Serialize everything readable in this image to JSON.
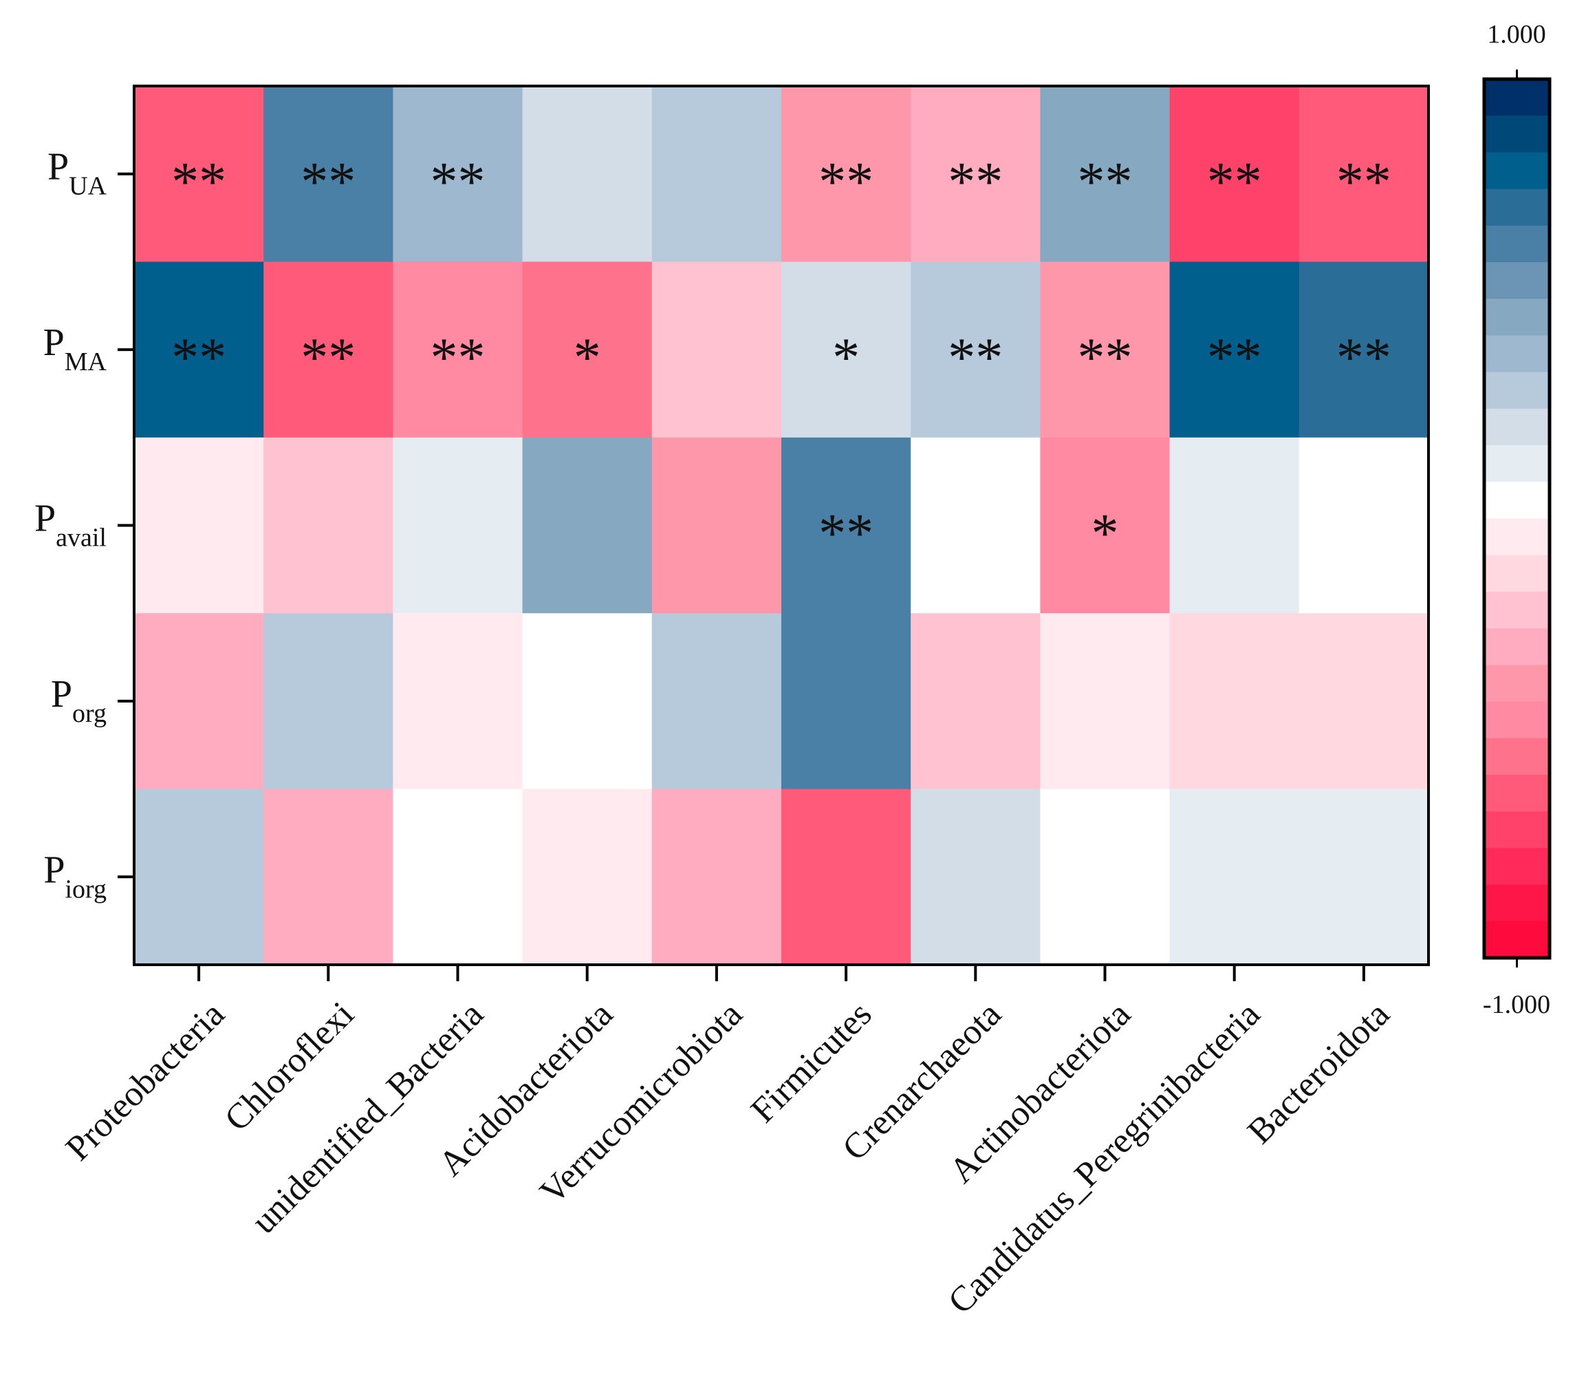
{
  "chart_data": {
    "type": "heatmap",
    "rows": [
      {
        "base": "P",
        "sub": "UA"
      },
      {
        "base": "P",
        "sub": "MA"
      },
      {
        "base": "P",
        "sub": "avail"
      },
      {
        "base": "P",
        "sub": "org"
      },
      {
        "base": "P",
        "sub": "iorg"
      }
    ],
    "columns": [
      "Proteobacteria",
      "Chloroflexi",
      "unidentified_Bacteria",
      "Acidobacteriota",
      "Verrucomicrobiota",
      "Firmicutes",
      "Crenarchaeota",
      "Actinobacteriota",
      "Candidatus_Peregrinibacteria",
      "Bacteroidota"
    ],
    "values": [
      [
        -0.63,
        0.63,
        0.38,
        0.21,
        0.29,
        -0.38,
        -0.29,
        0.46,
        -0.71,
        -0.63
      ],
      [
        0.79,
        -0.63,
        -0.46,
        -0.54,
        -0.21,
        0.21,
        0.29,
        -0.38,
        0.79,
        0.71
      ],
      [
        -0.04,
        -0.21,
        0.13,
        0.46,
        -0.38,
        0.63,
        0.04,
        -0.46,
        0.13,
        0.04
      ],
      [
        -0.29,
        0.29,
        -0.04,
        0.04,
        0.29,
        0.63,
        -0.21,
        -0.04,
        -0.13,
        -0.13
      ],
      [
        0.29,
        -0.29,
        0.04,
        -0.04,
        -0.29,
        -0.63,
        0.21,
        0.04,
        0.13,
        0.13
      ]
    ],
    "significance": [
      [
        "**",
        "**",
        "**",
        "",
        "",
        "**",
        "**",
        "**",
        "**",
        "**"
      ],
      [
        "**",
        "**",
        "**",
        "*",
        "",
        "*",
        "**",
        "**",
        "**",
        "**"
      ],
      [
        "",
        "",
        "",
        "",
        "",
        "**",
        "",
        "*",
        "",
        ""
      ],
      [
        "",
        "",
        "",
        "",
        "",
        "",
        "",
        "",
        "",
        ""
      ],
      [
        "",
        "",
        "",
        "",
        "",
        "",
        "",
        "",
        "",
        ""
      ]
    ],
    "colorbar": {
      "min": -1.0,
      "max": 1.0,
      "min_label": "-1.000",
      "max_label": "1.000",
      "colors": [
        "#00306a",
        "#004878",
        "#005f8c",
        "#2a6e98",
        "#4a80a6",
        "#6b94b5",
        "#86a8c0",
        "#9db8cf",
        "#b6cadb",
        "#d3dde8",
        "#e6edf2",
        "#ffffff",
        "#ffebef",
        "#ffd8e0",
        "#ffc2d1",
        "#ffabc0",
        "#ff97ab",
        "#ff8aa2",
        "#ff728c",
        "#ff5a7a",
        "#ff426a",
        "#ff2a5a",
        "#ff1648",
        "#ff0a3c"
      ]
    },
    "legend_placement": "right",
    "grid": false
  }
}
